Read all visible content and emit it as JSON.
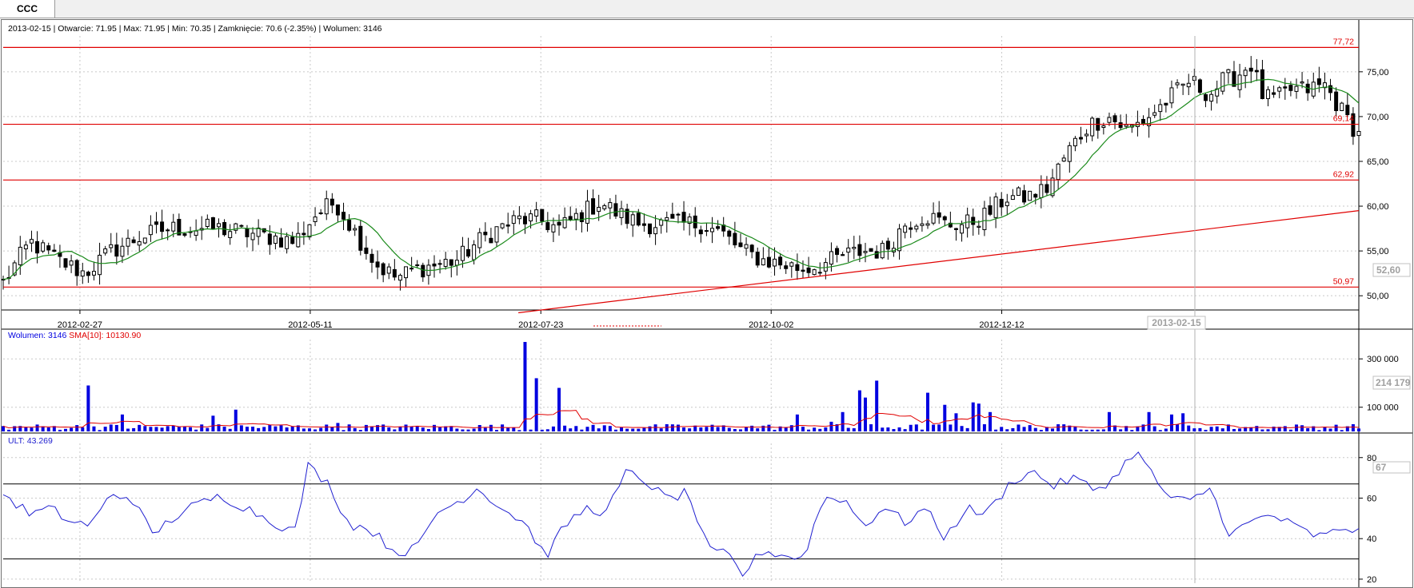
{
  "tab": {
    "label": "CCC"
  },
  "info_bar": "2013-02-15 | Otwarcie: 71.95 | Max: 71.95 | Min: 70.35 | Zamknięcie: 70.6 (-2.35%)  | Wolumen: 3146",
  "colors": {
    "candle": "#000000",
    "sma_price": "#1a8a1a",
    "level": "#e00000",
    "volume": "#0000e0",
    "vol_sma": "#e00000",
    "ult": "#2020d0",
    "grid": "#c8c8c8",
    "label_grey": "#a0a0a0"
  },
  "chart_data": [
    {
      "type": "candlestick",
      "x_ticks": [
        "2012-02-27",
        "2012-05-11",
        "2012-07-23",
        "2012-10-02",
        "2012-12-12"
      ],
      "x_cursor_label": "2013-02-15",
      "y_ticks": [
        "75,00",
        "70,00",
        "65,00",
        "60,00",
        "55,00",
        "50,00"
      ],
      "ylim": [
        48.5,
        79
      ],
      "cursor_value_label": "52,60",
      "levels": [
        {
          "value": 77.72,
          "label": "77,72"
        },
        {
          "value": 69.14,
          "label": "69,14"
        },
        {
          "value": 62.92,
          "label": "62,92"
        },
        {
          "value": 50.97,
          "label": "50,97"
        }
      ],
      "trendline": {
        "start": [
          0.38,
          48.1
        ],
        "end": [
          1.0,
          59.5
        ]
      },
      "close_anchors": [
        [
          0,
          51.5
        ],
        [
          0.01,
          57
        ],
        [
          0.03,
          53
        ],
        [
          0.045,
          55.5
        ],
        [
          0.055,
          51
        ],
        [
          0.065,
          55
        ],
        [
          0.085,
          56
        ],
        [
          0.095,
          52
        ],
        [
          0.115,
          55
        ],
        [
          0.14,
          56.5
        ],
        [
          0.16,
          58
        ],
        [
          0.185,
          57
        ],
        [
          0.2,
          58
        ],
        [
          0.225,
          57.5
        ],
        [
          0.245,
          58
        ],
        [
          0.275,
          57
        ],
        [
          0.3,
          56
        ],
        [
          0.33,
          55
        ],
        [
          0.36,
          58
        ],
        [
          0.375,
          56
        ],
        [
          0.385,
          58
        ],
        [
          0.395,
          56
        ],
        [
          0.41,
          58
        ],
        [
          0.425,
          63
        ],
        [
          0.44,
          61
        ],
        [
          0.455,
          59
        ],
        [
          0.475,
          56
        ],
        [
          0.495,
          54
        ],
        [
          0.515,
          53
        ],
        [
          0.53,
          52
        ],
        [
          0.545,
          55
        ],
        [
          0.56,
          53.5
        ],
        [
          0.58,
          53
        ],
        [
          0.6,
          53
        ],
        [
          0.615,
          54
        ],
        [
          0.63,
          55.5
        ],
        [
          0.65,
          57.5
        ],
        [
          0.665,
          58
        ],
        [
          0.68,
          58.5
        ],
        [
          0.695,
          58.5
        ],
        [
          0.71,
          59
        ],
        [
          0.72,
          59
        ],
        [
          0.73,
          58.5
        ],
        [
          0.745,
          58
        ],
        [
          0.76,
          59
        ],
        [
          0.77,
          60
        ],
        [
          0.785,
          60
        ],
        [
          0.795,
          59
        ],
        [
          0.81,
          58.5
        ],
        [
          0.825,
          58
        ],
        [
          0.84,
          58
        ],
        [
          0.86,
          58
        ],
        [
          0.875,
          57
        ],
        [
          0.89,
          58
        ],
        [
          0.905,
          58
        ],
        [
          0.92,
          58
        ],
        [
          0.935,
          58
        ],
        [
          0.95,
          58
        ],
        [
          0.965,
          57
        ],
        [
          0.975,
          58
        ],
        [
          0.99,
          57
        ],
        [
          1.0,
          57
        ]
      ],
      "anchors_segment_note": "",
      "price_path": [
        [
          0,
          51.5
        ],
        [
          0.02,
          56
        ],
        [
          0.04,
          54
        ],
        [
          0.06,
          52.5
        ],
        [
          0.08,
          55
        ],
        [
          0.1,
          56.5
        ],
        [
          0.12,
          57.5
        ],
        [
          0.14,
          57.5
        ],
        [
          0.16,
          57.5
        ],
        [
          0.18,
          57
        ],
        [
          0.2,
          56.5
        ],
        [
          0.215,
          56
        ],
        [
          0.23,
          59
        ],
        [
          0.245,
          60.5
        ],
        [
          0.26,
          57
        ],
        [
          0.275,
          53.5
        ],
        [
          0.29,
          52
        ],
        [
          0.305,
          53
        ],
        [
          0.32,
          53.5
        ],
        [
          0.335,
          54
        ],
        [
          0.35,
          56
        ],
        [
          0.365,
          57.5
        ],
        [
          0.38,
          58.5
        ],
        [
          0.395,
          58.5
        ],
        [
          0.41,
          57.5
        ],
        [
          0.425,
          59
        ],
        [
          0.44,
          60.5
        ],
        [
          0.455,
          59
        ],
        [
          0.47,
          58
        ],
        [
          0.485,
          58
        ],
        [
          0.5,
          58
        ],
        [
          0.515,
          58
        ],
        [
          0.53,
          57
        ],
        [
          0.545,
          55
        ],
        [
          0.56,
          54
        ],
        [
          0.575,
          53.5
        ],
        [
          0.59,
          53
        ],
        [
          0.605,
          53.5
        ],
        [
          0.62,
          54.5
        ],
        [
          0.635,
          55
        ],
        [
          0.65,
          55
        ],
        [
          0.665,
          58
        ],
        [
          0.68,
          59
        ],
        [
          0.695,
          58
        ],
        [
          0.71,
          58
        ],
        [
          0.725,
          59
        ],
        [
          0.74,
          61
        ],
        [
          0.755,
          61
        ],
        [
          0.77,
          62
        ],
        [
          0.785,
          66
        ],
        [
          0.8,
          69
        ],
        [
          0.815,
          70
        ],
        [
          0.83,
          68.5
        ],
        [
          0.845,
          70
        ],
        [
          0.86,
          72
        ],
        [
          0.875,
          74
        ],
        [
          0.89,
          72.5
        ],
        [
          0.9,
          74
        ],
        [
          0.91,
          74.5
        ],
        [
          0.92,
          76
        ],
        [
          0.93,
          72
        ],
        [
          0.94,
          72
        ],
        [
          0.95,
          73
        ],
        [
          0.96,
          73
        ],
        [
          0.975,
          73.5
        ],
        [
          0.99,
          70
        ],
        [
          1.0,
          68
        ]
      ],
      "candles_count": 240,
      "series": [
        {
          "name": "",
          "values": []
        }
      ]
    },
    {
      "type": "bar",
      "legend": {
        "volume": "Wolumen: 3146",
        "sma": "SMA[10]: 10130.90"
      },
      "y_ticks": [
        "300 000",
        "100 000"
      ],
      "ylim": [
        0,
        380000
      ],
      "cursor_value_label": "214 179",
      "spikes": [
        [
          0.063,
          190000
        ],
        [
          0.088,
          70000
        ],
        [
          0.155,
          65000
        ],
        [
          0.172,
          90000
        ],
        [
          0.248,
          35000
        ],
        [
          0.387,
          370000
        ],
        [
          0.395,
          220000
        ],
        [
          0.41,
          180000
        ],
        [
          0.585,
          70000
        ],
        [
          0.61,
          40000
        ],
        [
          0.62,
          80000
        ],
        [
          0.632,
          170000
        ],
        [
          0.638,
          140000
        ],
        [
          0.643,
          210000
        ],
        [
          0.68,
          160000
        ],
        [
          0.695,
          110000
        ],
        [
          0.705,
          75000
        ],
        [
          0.715,
          120000
        ],
        [
          0.72,
          115000
        ],
        [
          0.73,
          80000
        ],
        [
          0.815,
          80000
        ],
        [
          0.845,
          80000
        ],
        [
          0.86,
          70000
        ],
        [
          0.87,
          75000
        ]
      ],
      "base_volume": 18000
    },
    {
      "type": "line",
      "legend": "ULT: 43.269",
      "y_ticks": [
        "80",
        "60",
        "40",
        "20"
      ],
      "ylim": [
        18,
        87
      ],
      "cursor_value_label": "67",
      "hlines": [
        67,
        30
      ],
      "values_anchor": [
        [
          0,
          62
        ],
        [
          0.02,
          52
        ],
        [
          0.035,
          55
        ],
        [
          0.05,
          48
        ],
        [
          0.065,
          47
        ],
        [
          0.08,
          62
        ],
        [
          0.095,
          60
        ],
        [
          0.11,
          42
        ],
        [
          0.125,
          50
        ],
        [
          0.14,
          56
        ],
        [
          0.16,
          61
        ],
        [
          0.18,
          55
        ],
        [
          0.2,
          48
        ],
        [
          0.215,
          43
        ],
        [
          0.225,
          76
        ],
        [
          0.24,
          67
        ],
        [
          0.255,
          47
        ],
        [
          0.27,
          45
        ],
        [
          0.29,
          33
        ],
        [
          0.305,
          35
        ],
        [
          0.32,
          53
        ],
        [
          0.335,
          58
        ],
        [
          0.35,
          65
        ],
        [
          0.37,
          54
        ],
        [
          0.385,
          48
        ],
        [
          0.4,
          31
        ],
        [
          0.415,
          47
        ],
        [
          0.43,
          55
        ],
        [
          0.445,
          53
        ],
        [
          0.46,
          73
        ],
        [
          0.475,
          68
        ],
        [
          0.49,
          59
        ],
        [
          0.505,
          63
        ],
        [
          0.52,
          34
        ],
        [
          0.535,
          32
        ],
        [
          0.545,
          22
        ],
        [
          0.56,
          34
        ],
        [
          0.575,
          32
        ],
        [
          0.59,
          30
        ],
        [
          0.605,
          60
        ],
        [
          0.62,
          60
        ],
        [
          0.635,
          46
        ],
        [
          0.65,
          56
        ],
        [
          0.665,
          48
        ],
        [
          0.68,
          55
        ],
        [
          0.695,
          40
        ],
        [
          0.71,
          55
        ],
        [
          0.725,
          52
        ],
        [
          0.745,
          69
        ],
        [
          0.76,
          73
        ],
        [
          0.775,
          66
        ],
        [
          0.79,
          70
        ],
        [
          0.805,
          64
        ],
        [
          0.82,
          70
        ],
        [
          0.835,
          84
        ],
        [
          0.845,
          74
        ],
        [
          0.86,
          60
        ],
        [
          0.875,
          58
        ],
        [
          0.89,
          65
        ],
        [
          0.905,
          42
        ],
        [
          0.92,
          48
        ],
        [
          0.935,
          52
        ],
        [
          0.95,
          47
        ],
        [
          0.965,
          42
        ],
        [
          0.975,
          41
        ],
        [
          0.99,
          46
        ],
        [
          1.0,
          43
        ]
      ]
    }
  ]
}
